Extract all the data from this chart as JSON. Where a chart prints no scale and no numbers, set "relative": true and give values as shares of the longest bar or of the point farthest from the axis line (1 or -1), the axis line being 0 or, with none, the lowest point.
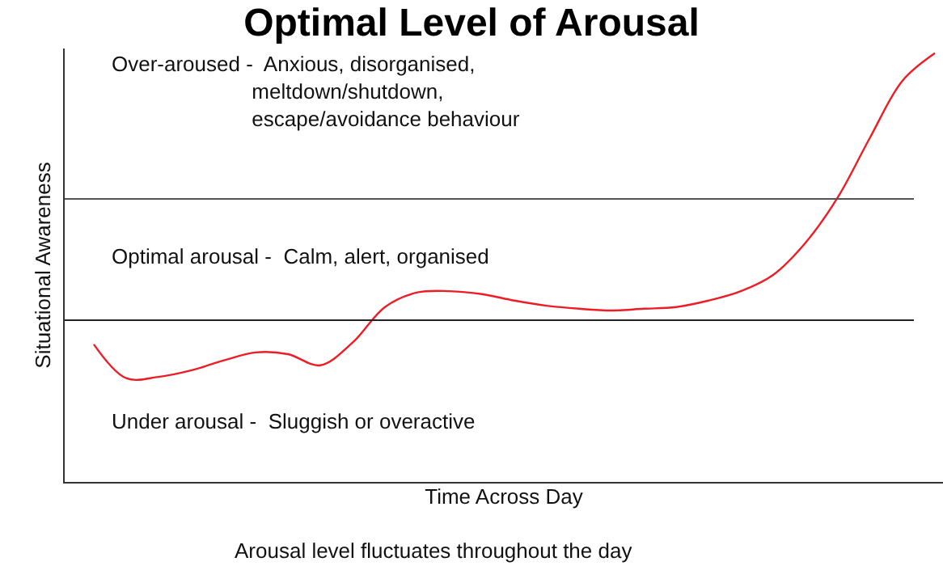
{
  "chart_data": {
    "type": "line",
    "title": "Optimal Level of Arousal",
    "xlabel": "Time Across Day",
    "ylabel": "Situational Awareness",
    "relative": true,
    "categories": [
      null,
      null,
      null,
      null,
      null,
      null,
      null,
      null,
      null,
      null,
      null,
      null,
      null,
      null,
      null,
      null,
      null,
      null,
      null,
      null,
      null,
      null,
      null,
      null,
      null,
      null,
      null
    ],
    "series": [
      {
        "color": "#ee1c24",
        "values": [
          0.321,
          0.242,
          0.245,
          0.26,
          0.283,
          0.302,
          0.298,
          0.272,
          0.325,
          0.408,
          0.442,
          0.445,
          0.438,
          0.423,
          0.411,
          0.404,
          0.4,
          0.404,
          0.408,
          0.423,
          0.445,
          0.483,
          0.558,
          0.664,
          0.804,
          0.936,
          1.0
        ]
      }
    ],
    "ref_lines": [
      {
        "axis": "y",
        "value": 0.66,
        "color": "#555555"
      },
      {
        "axis": "y",
        "value": 0.377,
        "color": "#222222"
      }
    ],
    "annotations": [
      "Over-aroused -  Anxious, disorganised,\n                        meltdown/shutdown,\n                        escape/avoidance behaviour",
      "Optimal arousal -  Calm, alert, organised",
      "Under arousal -  Sluggish or overactive",
      "Arousal level fluctuates throughout the day"
    ],
    "legend": false,
    "marker": "none",
    "line_style": "solid"
  }
}
